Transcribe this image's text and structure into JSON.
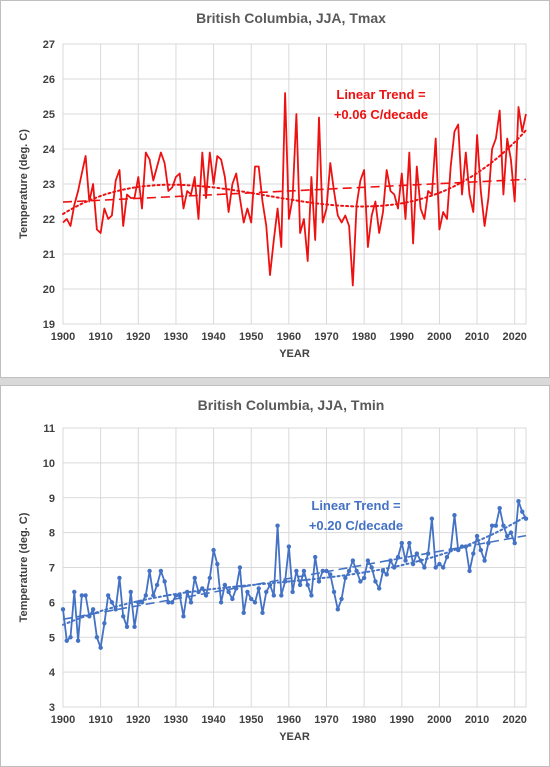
{
  "chart_data": [
    {
      "type": "line",
      "title": "British Columbia, JJA, Tmax",
      "xlabel": "YEAR",
      "ylabel": "Temperature (deg. C)",
      "xlim": [
        1900,
        2023
      ],
      "ylim": [
        19,
        27
      ],
      "xticks": [
        1900,
        1910,
        1920,
        1930,
        1940,
        1950,
        1960,
        1970,
        1980,
        1990,
        2000,
        2010,
        2020
      ],
      "yticks": [
        19,
        20,
        21,
        22,
        23,
        24,
        25,
        26,
        27
      ],
      "grid": true,
      "color": "#ee1111",
      "annotation": {
        "line1": "Linear Trend =",
        "line2": "+0.06 C/decade"
      },
      "series": [
        {
          "x": [
            1900,
            1901,
            1902,
            1903,
            1904,
            1905,
            1906,
            1907,
            1908,
            1909,
            1910,
            1911,
            1912,
            1913,
            1914,
            1915,
            1916,
            1917,
            1918,
            1919,
            1920,
            1921,
            1922,
            1923,
            1924,
            1925,
            1926,
            1927,
            1928,
            1929,
            1930,
            1931,
            1932,
            1933,
            1934,
            1935,
            1936,
            1937,
            1938,
            1939,
            1940,
            1941,
            1942,
            1943,
            1944,
            1945,
            1946,
            1947,
            1948,
            1949,
            1950,
            1951,
            1952,
            1953,
            1954,
            1955,
            1956,
            1957,
            1958,
            1959,
            1960,
            1961,
            1962,
            1963,
            1964,
            1965,
            1966,
            1967,
            1968,
            1969,
            1970,
            1971,
            1972,
            1973,
            1974,
            1975,
            1976,
            1977,
            1978,
            1979,
            1980,
            1981,
            1982,
            1983,
            1984,
            1985,
            1986,
            1987,
            1988,
            1989,
            1990,
            1991,
            1992,
            1993,
            1994,
            1995,
            1996,
            1997,
            1998,
            1999,
            2000,
            2001,
            2002,
            2003,
            2004,
            2005,
            2006,
            2007,
            2008,
            2009,
            2010,
            2011,
            2012,
            2013,
            2014,
            2015,
            2016,
            2017,
            2018,
            2019,
            2020,
            2021,
            2022,
            2023
          ],
          "y": [
            21.9,
            22.0,
            21.8,
            22.4,
            22.8,
            23.3,
            23.8,
            22.5,
            23.0,
            21.7,
            21.6,
            22.3,
            22.0,
            22.1,
            23.1,
            23.4,
            21.8,
            22.7,
            22.6,
            22.6,
            23.2,
            22.3,
            23.9,
            23.7,
            23.1,
            23.5,
            23.9,
            23.6,
            22.8,
            22.9,
            23.2,
            23.3,
            22.3,
            22.8,
            22.7,
            23.2,
            22.0,
            23.9,
            22.6,
            23.9,
            23.0,
            23.8,
            23.7,
            23.2,
            22.2,
            23.0,
            23.3,
            22.6,
            21.9,
            22.3,
            21.9,
            23.5,
            23.5,
            22.5,
            21.8,
            20.4,
            21.4,
            22.3,
            21.2,
            25.6,
            22.0,
            22.6,
            25.0,
            21.6,
            22.0,
            20.8,
            23.2,
            21.4,
            24.9,
            21.9,
            22.3,
            23.6,
            22.8,
            22.1,
            21.9,
            22.1,
            21.8,
            20.1,
            22.4,
            23.1,
            23.4,
            21.2,
            22.1,
            22.5,
            21.6,
            22.2,
            23.4,
            22.8,
            22.7,
            22.3,
            23.3,
            22.0,
            23.9,
            21.3,
            23.5,
            22.3,
            22.0,
            22.8,
            22.7,
            24.3,
            21.7,
            22.2,
            22.0,
            23.5,
            24.5,
            24.7,
            22.7,
            23.9,
            22.7,
            22.2,
            24.4,
            22.8,
            21.8,
            22.6,
            24.0,
            24.3,
            25.1,
            22.7,
            24.3,
            23.7,
            22.5,
            25.2,
            24.5,
            25.0
          ]
        }
      ]
    },
    {
      "type": "line",
      "title": "British Columbia, JJA, Tmin",
      "xlabel": "YEAR",
      "ylabel": "Temperature (deg. C)",
      "xlim": [
        1900,
        2023
      ],
      "ylim": [
        3,
        11
      ],
      "xticks": [
        1900,
        1910,
        1920,
        1930,
        1940,
        1950,
        1960,
        1970,
        1980,
        1990,
        2000,
        2010,
        2020
      ],
      "yticks": [
        3,
        4,
        5,
        6,
        7,
        8,
        9,
        10,
        11
      ],
      "grid": true,
      "color": "#4472c4",
      "annotation": {
        "line1": "Linear Trend =",
        "line2": "+0.20 C/decade"
      },
      "series": [
        {
          "x": [
            1900,
            1901,
            1902,
            1903,
            1904,
            1905,
            1906,
            1907,
            1908,
            1909,
            1910,
            1911,
            1912,
            1913,
            1914,
            1915,
            1916,
            1917,
            1918,
            1919,
            1920,
            1921,
            1922,
            1923,
            1924,
            1925,
            1926,
            1927,
            1928,
            1929,
            1930,
            1931,
            1932,
            1933,
            1934,
            1935,
            1936,
            1937,
            1938,
            1939,
            1940,
            1941,
            1942,
            1943,
            1944,
            1945,
            1946,
            1947,
            1948,
            1949,
            1950,
            1951,
            1952,
            1953,
            1954,
            1955,
            1956,
            1957,
            1958,
            1959,
            1960,
            1961,
            1962,
            1963,
            1964,
            1965,
            1966,
            1967,
            1968,
            1969,
            1970,
            1971,
            1972,
            1973,
            1974,
            1975,
            1976,
            1977,
            1978,
            1979,
            1980,
            1981,
            1982,
            1983,
            1984,
            1985,
            1986,
            1987,
            1988,
            1989,
            1990,
            1991,
            1992,
            1993,
            1994,
            1995,
            1996,
            1997,
            1998,
            1999,
            2000,
            2001,
            2002,
            2003,
            2004,
            2005,
            2006,
            2007,
            2008,
            2009,
            2010,
            2011,
            2012,
            2013,
            2014,
            2015,
            2016,
            2017,
            2018,
            2019,
            2020,
            2021,
            2022,
            2023
          ],
          "y": [
            5.8,
            4.9,
            5.0,
            6.3,
            4.9,
            6.2,
            6.2,
            5.6,
            5.8,
            5.0,
            4.7,
            5.4,
            6.2,
            6.0,
            5.8,
            6.7,
            5.6,
            5.3,
            6.3,
            5.3,
            6.0,
            6.0,
            6.2,
            6.9,
            6.2,
            6.5,
            6.9,
            6.6,
            6.0,
            6.0,
            6.2,
            6.2,
            5.6,
            6.3,
            6.0,
            6.7,
            6.3,
            6.4,
            6.2,
            6.7,
            7.5,
            7.1,
            6.0,
            6.5,
            6.3,
            6.1,
            6.4,
            7.0,
            5.7,
            6.3,
            6.1,
            6.0,
            6.4,
            5.7,
            6.3,
            6.5,
            6.2,
            8.2,
            6.2,
            6.6,
            7.6,
            6.3,
            6.9,
            6.5,
            6.9,
            6.5,
            6.2,
            7.3,
            6.6,
            6.9,
            6.9,
            6.8,
            6.3,
            5.8,
            6.1,
            6.7,
            6.9,
            7.2,
            6.9,
            6.6,
            6.7,
            7.2,
            7.0,
            6.6,
            6.4,
            6.9,
            6.8,
            7.2,
            7.0,
            7.3,
            7.7,
            7.2,
            7.7,
            7.1,
            7.4,
            7.2,
            7.0,
            7.4,
            8.4,
            7.0,
            7.1,
            7.0,
            7.3,
            7.5,
            8.5,
            7.5,
            7.6,
            7.6,
            6.9,
            7.4,
            7.9,
            7.5,
            7.2,
            7.7,
            8.2,
            8.2,
            8.7,
            8.2,
            7.9,
            8.0,
            7.7,
            8.9,
            8.6,
            8.4
          ]
        }
      ]
    }
  ]
}
